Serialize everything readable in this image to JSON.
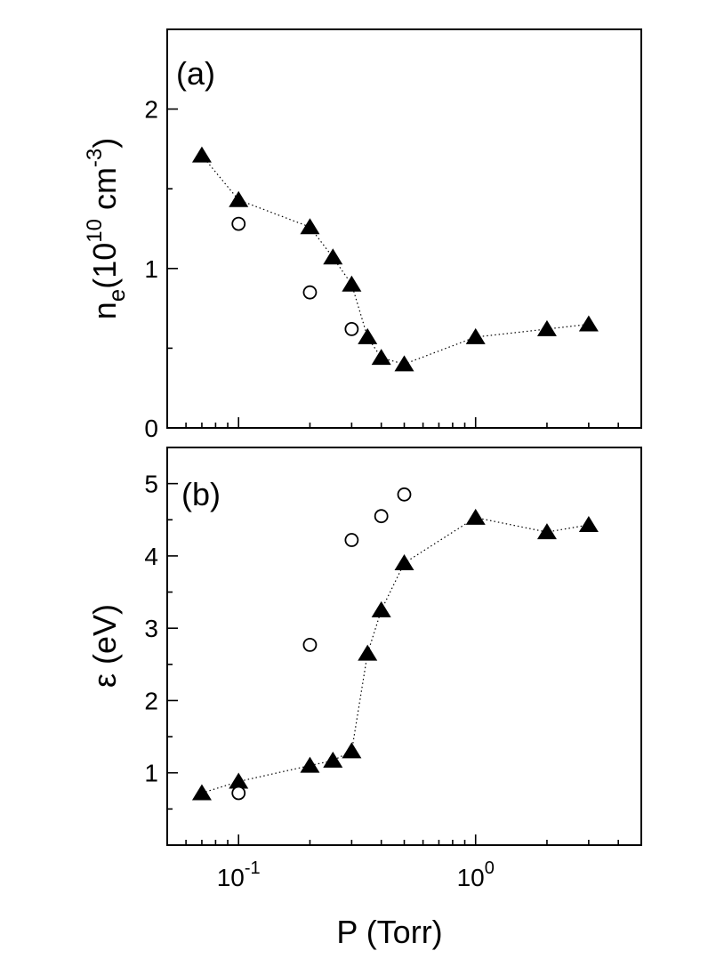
{
  "chart_data": [
    {
      "type": "scatter",
      "panel_label": "(a)",
      "xlabel": "P (Torr)",
      "ylabel_parts": {
        "main": "n",
        "sub": "e",
        "open": "(10",
        "sup1": "10",
        "mid": " cm",
        "sup2": "-3",
        "close": ")"
      },
      "xscale": "log",
      "xlim": [
        0.05,
        5
      ],
      "ylim": [
        0,
        2.5
      ],
      "x_tick_labels": [
        "",
        ""
      ],
      "y_ticks": [
        0,
        1,
        2
      ],
      "y_tick_labels": [
        "0",
        "1",
        "2"
      ],
      "series": [
        {
          "marker": "filled-triangle",
          "line": "dotted",
          "x": [
            0.07,
            0.1,
            0.2,
            0.25,
            0.3,
            0.35,
            0.4,
            0.5,
            1.0,
            2.0,
            3.0
          ],
          "y": [
            1.71,
            1.43,
            1.26,
            1.07,
            0.9,
            0.57,
            0.44,
            0.4,
            0.57,
            0.62,
            0.65
          ]
        },
        {
          "marker": "open-circle",
          "line": "none",
          "x": [
            0.1,
            0.2,
            0.3
          ],
          "y": [
            1.28,
            0.85,
            0.62
          ]
        }
      ]
    },
    {
      "type": "scatter",
      "panel_label": "(b)",
      "xlabel": "P (Torr)",
      "ylabel": "ε (eV)",
      "xscale": "log",
      "xlim": [
        0.05,
        5
      ],
      "ylim": [
        0,
        5.5
      ],
      "x_ticks": [
        0.1,
        1
      ],
      "x_tick_labels": [
        {
          "base": "10",
          "exp": "-1"
        },
        {
          "base": "10",
          "exp": "0"
        }
      ],
      "y_ticks": [
        1,
        2,
        3,
        4,
        5
      ],
      "y_tick_labels": [
        "1",
        "2",
        "3",
        "4",
        "5"
      ],
      "series": [
        {
          "marker": "filled-triangle",
          "line": "dotted",
          "x": [
            0.07,
            0.1,
            0.2,
            0.25,
            0.3,
            0.35,
            0.4,
            0.5,
            1.0,
            2.0,
            3.0
          ],
          "y": [
            0.72,
            0.88,
            1.1,
            1.17,
            1.3,
            2.65,
            3.25,
            3.9,
            4.53,
            4.33,
            4.43
          ]
        },
        {
          "marker": "open-circle",
          "line": "none",
          "x": [
            0.1,
            0.2,
            0.3,
            0.4,
            0.5
          ],
          "y": [
            0.72,
            2.77,
            4.22,
            4.55,
            4.85
          ]
        }
      ]
    }
  ]
}
